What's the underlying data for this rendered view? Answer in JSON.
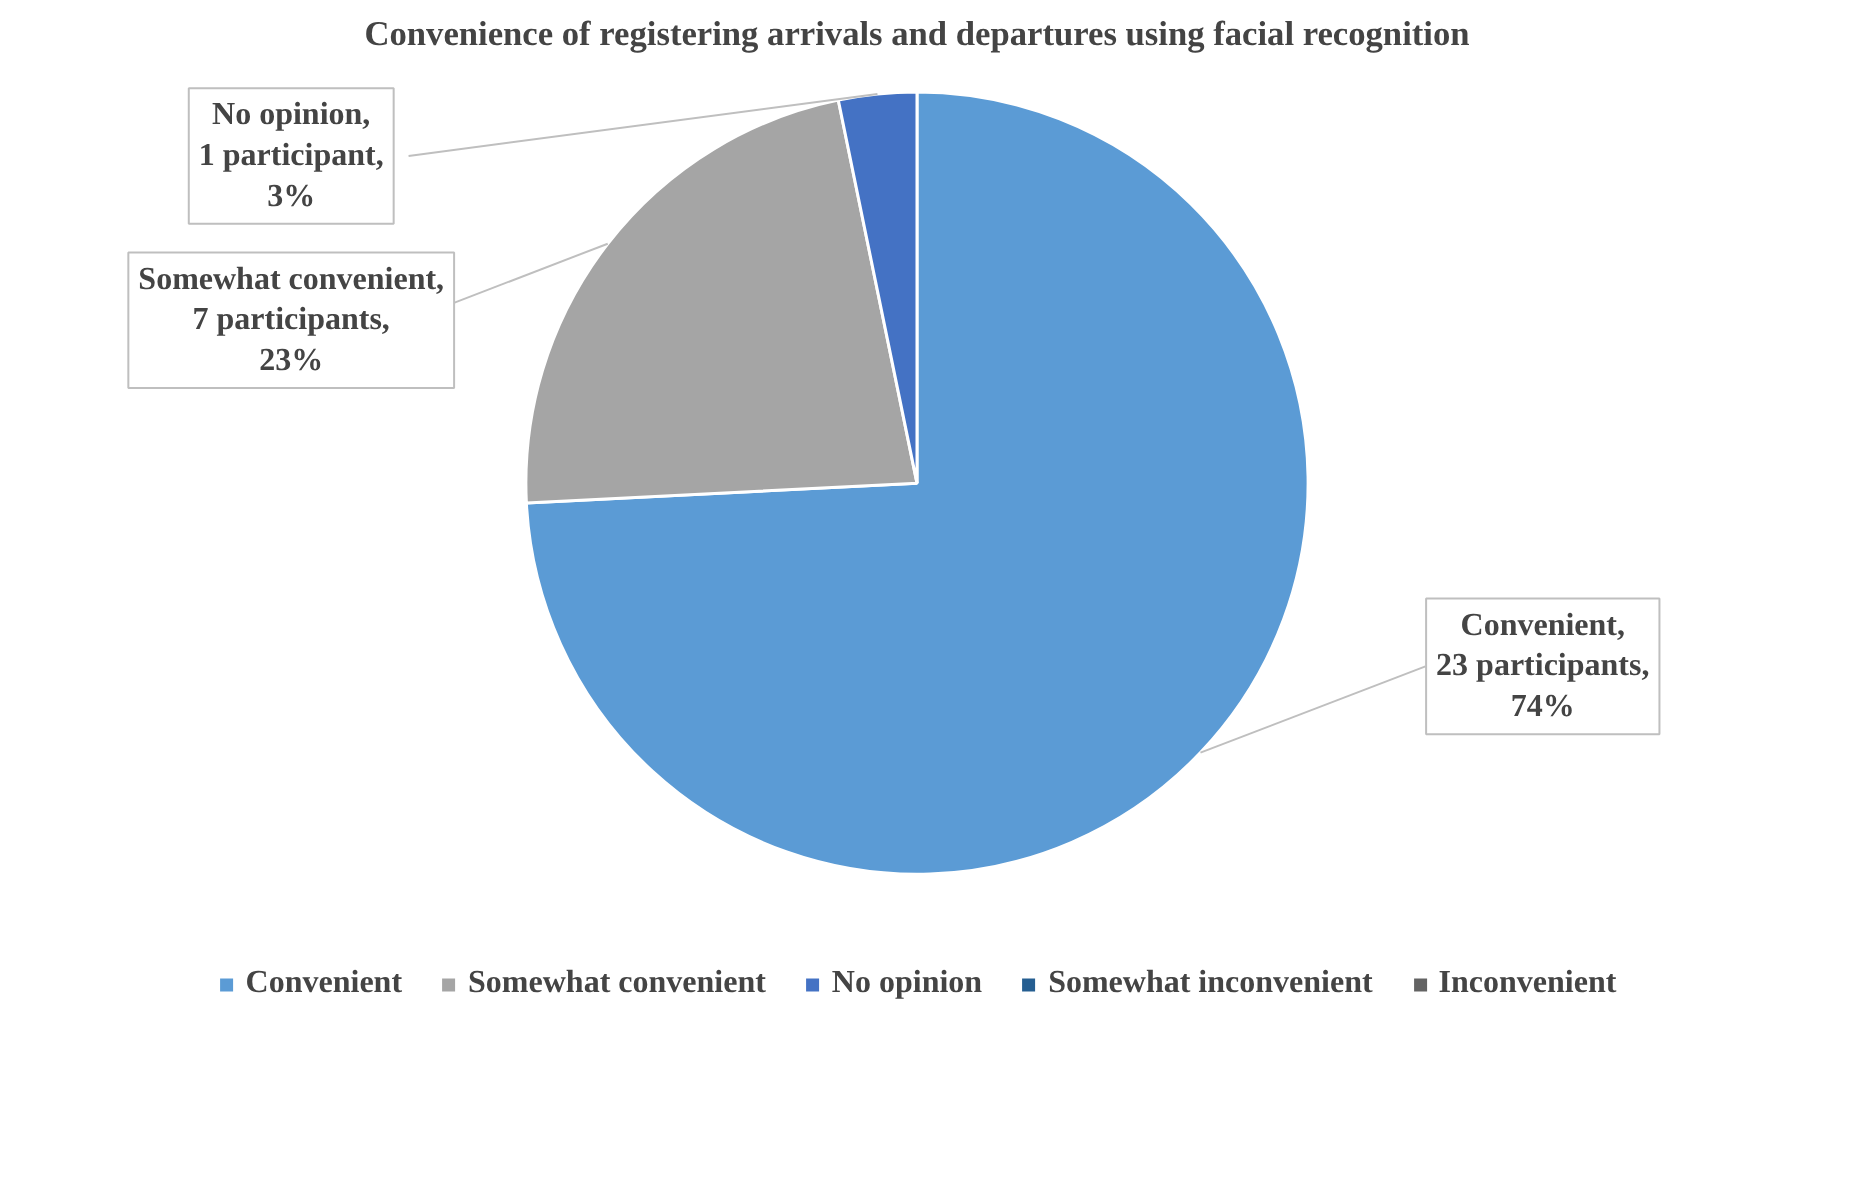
{
  "chart_data": {
    "type": "pie",
    "title": "Convenience of registering arrivals and departures using facial recognition",
    "categories": [
      "Convenient",
      "Somewhat convenient",
      "No opinion",
      "Somewhat inconvenient",
      "Inconvenient"
    ],
    "values": [
      23,
      7,
      1,
      0,
      0
    ],
    "colors": [
      "#5b9bd5",
      "#a5a5a5",
      "#4472c4",
      "#255e91",
      "#636363"
    ],
    "value_labels": [
      "Convenient, 23 participants, 74%",
      "Somewhat convenient, 7 participants, 23%",
      "No opinion, 1 participant, 3%",
      null,
      null
    ],
    "legend": "bottom"
  }
}
